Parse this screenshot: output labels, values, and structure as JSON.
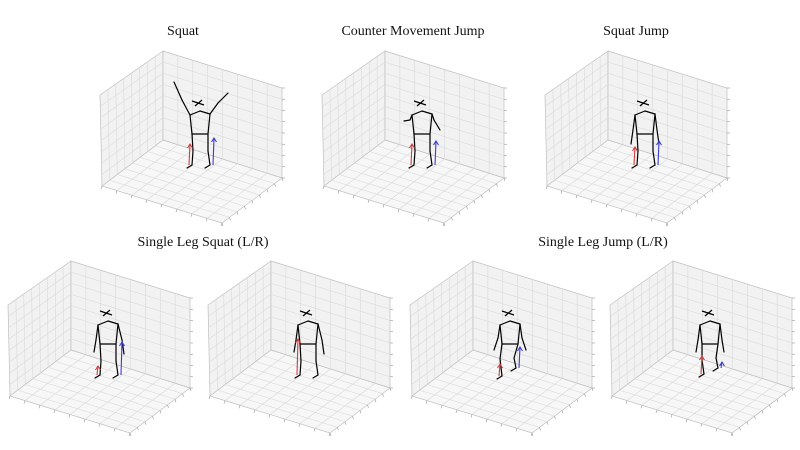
{
  "titles": {
    "squat": "Squat",
    "cmj": "Counter Movement Jump",
    "squat_jump": "Squat Jump",
    "single_leg_squat": "Single Leg Squat (L/R)",
    "single_leg_jump": "Single Leg Jump (L/R)"
  },
  "colors": {
    "pane_fill": "#f2f2f2",
    "grid": "#d9d9d9",
    "edge": "#bfbfbf",
    "figure": "#000000",
    "left_force": "#d23c3c",
    "right_force": "#3c3cd2"
  },
  "plots": [
    {
      "id": "squat",
      "pose": "arms_up",
      "left_force": 0.35,
      "right_force": 0.45
    },
    {
      "id": "cmj",
      "pose": "arms_down",
      "left_force": 0.35,
      "right_force": 0.4
    },
    {
      "id": "squat_jump",
      "pose": "arms_side",
      "left_force": 0.3,
      "right_force": 0.4
    },
    {
      "id": "sls_left",
      "pose": "standing_left",
      "left_force": 0.15,
      "right_force": 0.55
    },
    {
      "id": "sls_right",
      "pose": "standing_right",
      "left_force": 0.6,
      "right_force": 0.0
    },
    {
      "id": "slj_left",
      "pose": "bent_left",
      "left_force": 0.2,
      "right_force": 0.35
    },
    {
      "id": "slj_right",
      "pose": "bent_right",
      "left_force": 0.3,
      "right_force": 0.1
    }
  ]
}
